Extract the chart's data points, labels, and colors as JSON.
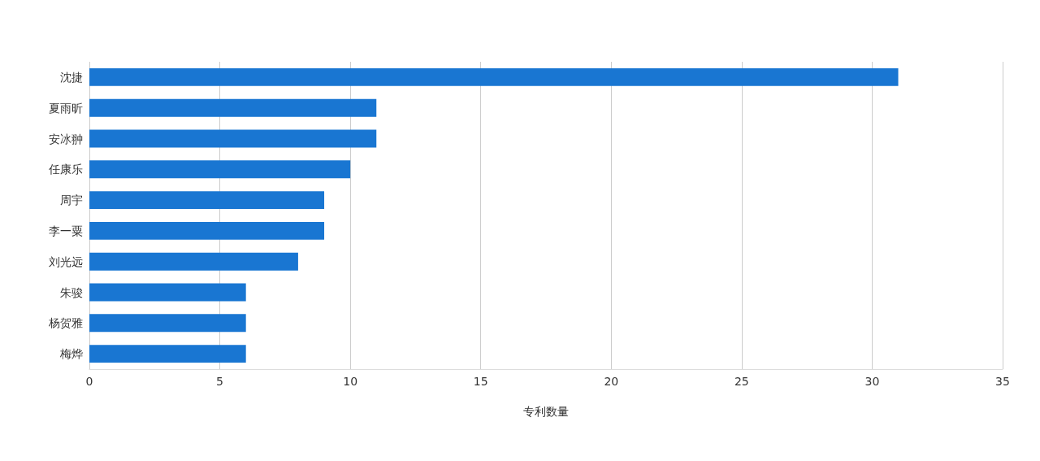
{
  "chart_data": {
    "type": "bar",
    "orientation": "horizontal",
    "xlabel": "专利数量",
    "categories": [
      "沈捷",
      "夏雨昕",
      "安冰翀",
      "任康乐",
      "周宇",
      "李一粟",
      "刘光远",
      "朱骏",
      "杨贺雅",
      "梅烨"
    ],
    "values": [
      31,
      11,
      11,
      10,
      9,
      9,
      8,
      6,
      6,
      6
    ],
    "color": "#1976d2",
    "xlim": [
      0,
      35
    ],
    "xticks": [
      0,
      5,
      10,
      15,
      20,
      25,
      30,
      35
    ],
    "grid": "x"
  }
}
